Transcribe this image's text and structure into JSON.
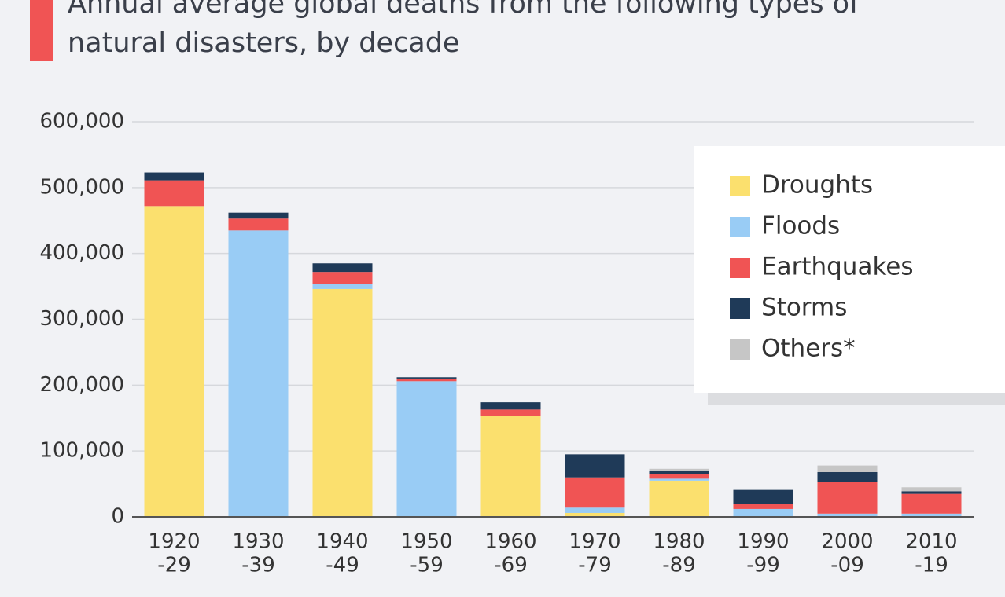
{
  "chart_data": {
    "type": "stacked-bar",
    "title": "Annual average global deaths from the following types of natural disasters, by decade",
    "categories": [
      [
        "1920",
        "-29"
      ],
      [
        "1930",
        "-39"
      ],
      [
        "1940",
        "-49"
      ],
      [
        "1950",
        "-59"
      ],
      [
        "1960",
        "-69"
      ],
      [
        "1970",
        "-79"
      ],
      [
        "1980",
        "-89"
      ],
      [
        "1990",
        "-99"
      ],
      [
        "2000",
        "-09"
      ],
      [
        "2010",
        "-19"
      ]
    ],
    "series": [
      {
        "name": "Droughts",
        "color": "#fbe06e",
        "values": [
          472000,
          0,
          346000,
          0,
          153000,
          6000,
          55000,
          0,
          0,
          0
        ]
      },
      {
        "name": "Floods",
        "color": "#99ccf5",
        "values": [
          0,
          435000,
          8000,
          206000,
          0,
          8000,
          3000,
          12000,
          5000,
          5000
        ]
      },
      {
        "name": "Earthquakes",
        "color": "#f05454",
        "values": [
          39000,
          18000,
          18000,
          4000,
          10000,
          46000,
          7000,
          8000,
          48000,
          30000
        ]
      },
      {
        "name": "Storms",
        "color": "#1f3a58",
        "values": [
          12000,
          9000,
          13000,
          2000,
          11000,
          35000,
          5000,
          21000,
          15000,
          4000
        ]
      },
      {
        "name": "Others*",
        "color": "#c6c6c6",
        "values": [
          0,
          0,
          0,
          0,
          0,
          0,
          3000,
          0,
          10000,
          6000
        ]
      }
    ],
    "ylim": [
      0,
      600000
    ],
    "yticks": [
      0,
      {
        "value": 100000,
        "label": "100,000"
      },
      {
        "value": 200000,
        "label": "200,000"
      },
      {
        "value": 300000,
        "label": "300,000"
      },
      {
        "value": 400000,
        "label": "400,000"
      },
      {
        "value": 500000,
        "label": "500,000"
      },
      {
        "value": 600000,
        "label": "600,000"
      }
    ],
    "grid": true,
    "legend": "right"
  }
}
